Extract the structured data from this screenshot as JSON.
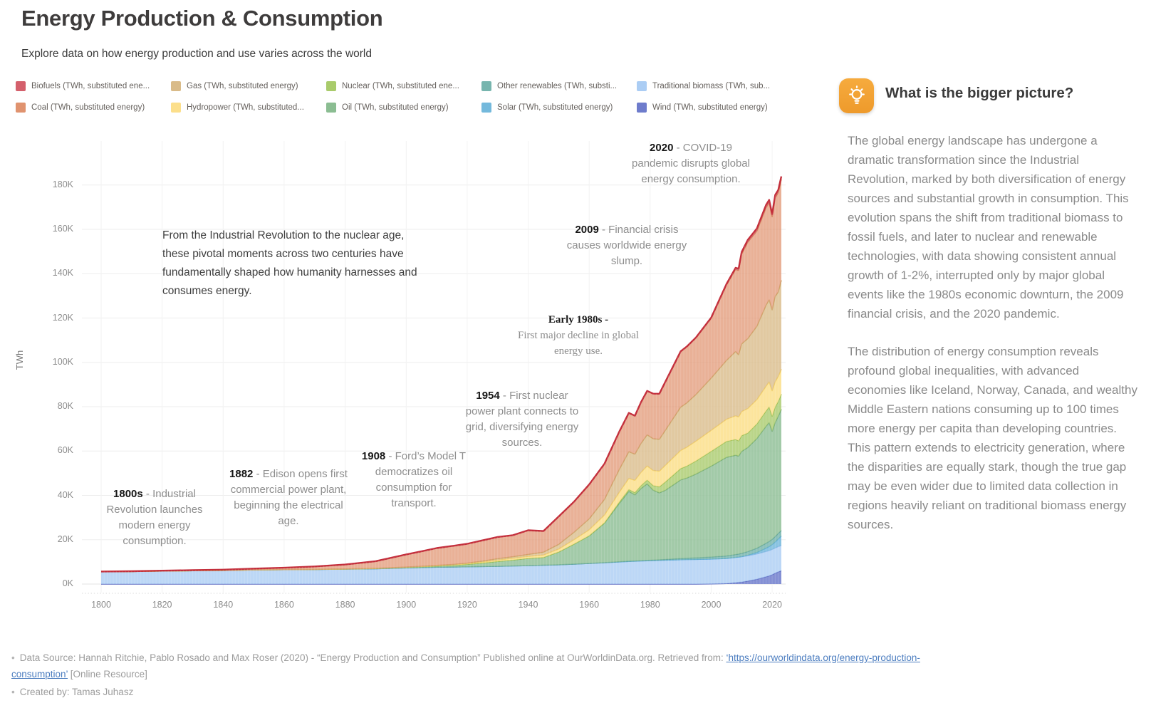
{
  "header": {
    "title": "Energy Production & Consumption",
    "subtitle": "Explore data on how energy production and use varies across the world"
  },
  "legend": {
    "items": [
      {
        "key": "biofuels",
        "label": "Biofuels (TWh, substituted ene...",
        "color": "#d4606c"
      },
      {
        "key": "coal",
        "label": "Coal (TWh, substituted energy)",
        "color": "#e0936f"
      },
      {
        "key": "gas",
        "label": "Gas (TWh, substituted energy)",
        "color": "#d9bb89"
      },
      {
        "key": "hydropower",
        "label": "Hydropower (TWh, substituted...",
        "color": "#fcdf8b"
      },
      {
        "key": "nuclear",
        "label": "Nuclear (TWh, substituted ene...",
        "color": "#a9cb6b"
      },
      {
        "key": "oil",
        "label": "Oil (TWh, substituted energy)",
        "color": "#8bbd92"
      },
      {
        "key": "other-renewables",
        "label": "Other renewables (TWh, substi...",
        "color": "#77b5ae"
      },
      {
        "key": "solar",
        "label": "Solar (TWh, substituted energy)",
        "color": "#74b9dc"
      },
      {
        "key": "traditional-biomass",
        "label": "Traditional biomass (TWh, sub...",
        "color": "#abcdf4"
      },
      {
        "key": "wind",
        "label": "Wind (TWh, substituted energy)",
        "color": "#6e7ccc"
      }
    ]
  },
  "chart_data": {
    "type": "area",
    "stacked": true,
    "title": "",
    "xlabel": "",
    "ylabel": "TWh",
    "xlim": [
      1800,
      2023
    ],
    "ylim": [
      0,
      200000
    ],
    "grid": true,
    "legend_position": "top",
    "xticks": [
      1800,
      1820,
      1840,
      1860,
      1880,
      1900,
      1920,
      1940,
      1960,
      1980,
      2000,
      2020
    ],
    "yticks": [
      "0K",
      "20K",
      "40K",
      "60K",
      "80K",
      "100K",
      "120K",
      "140K",
      "160K",
      "180K"
    ],
    "ytick_values": [
      0,
      20000,
      40000,
      60000,
      80000,
      100000,
      120000,
      140000,
      160000,
      180000
    ],
    "x": [
      1800,
      1810,
      1820,
      1830,
      1840,
      1850,
      1860,
      1870,
      1880,
      1890,
      1900,
      1905,
      1910,
      1915,
      1920,
      1925,
      1930,
      1935,
      1940,
      1945,
      1950,
      1955,
      1960,
      1965,
      1970,
      1973,
      1975,
      1977,
      1979,
      1981,
      1983,
      1985,
      1990,
      1992,
      1995,
      2000,
      2005,
      2008,
      2009,
      2010,
      2012,
      2015,
      2018,
      2019,
      2020,
      2021,
      2022,
      2023
    ],
    "stack_order_bottom_to_top": [
      "Wind",
      "Traditional biomass",
      "Solar",
      "Other renewables",
      "Oil",
      "Nuclear",
      "Hydropower",
      "Gas",
      "Coal",
      "Biofuels"
    ],
    "series": [
      {
        "name": "Wind",
        "color": "#6e7ccc",
        "stroke": "#5a68c0",
        "fill_opacity": 0.85,
        "line_width": 1.4,
        "values": [
          0,
          0,
          0,
          0,
          0,
          0,
          0,
          0,
          0,
          0,
          0,
          0,
          0,
          0,
          0,
          0,
          0,
          0,
          0,
          0,
          0,
          0,
          0,
          0,
          0,
          0,
          0,
          0,
          0,
          0,
          0,
          0,
          4,
          5,
          8,
          70,
          240,
          620,
          760,
          900,
          1350,
          2200,
          3300,
          3700,
          4200,
          4900,
          5500,
          6000
        ]
      },
      {
        "name": "Traditional biomass",
        "color": "#abcdf4",
        "stroke": "#92bbea",
        "fill_opacity": 0.8,
        "line_width": 1.4,
        "values": [
          5556,
          5650,
          5879,
          6000,
          6150,
          6390,
          6500,
          6600,
          6700,
          6900,
          7300,
          7450,
          7600,
          7700,
          7800,
          7900,
          8000,
          8150,
          8300,
          8500,
          8700,
          9000,
          9300,
          9600,
          10000,
          10200,
          10300,
          10400,
          10500,
          10600,
          10700,
          10800,
          11000,
          11050,
          11100,
          11200,
          11300,
          11350,
          11350,
          11400,
          11400,
          11400,
          11400,
          11400,
          11400,
          11400,
          11400,
          11400
        ]
      },
      {
        "name": "Solar",
        "color": "#74b9dc",
        "stroke": "#5cacd4",
        "fill_opacity": 0.85,
        "line_width": 1.4,
        "values": [
          0,
          0,
          0,
          0,
          0,
          0,
          0,
          0,
          0,
          0,
          0,
          0,
          0,
          0,
          0,
          0,
          0,
          0,
          0,
          0,
          0,
          0,
          0,
          0,
          0,
          0,
          0,
          0,
          0,
          0,
          0,
          0,
          0,
          0,
          0,
          3,
          12,
          35,
          55,
          90,
          260,
          660,
          1500,
          1800,
          2200,
          2700,
          3450,
          4300
        ]
      },
      {
        "name": "Other renewables",
        "color": "#77b5ae",
        "stroke": "#60a59d",
        "fill_opacity": 0.85,
        "line_width": 1.4,
        "values": [
          0,
          0,
          0,
          0,
          0,
          0,
          0,
          0,
          0,
          0,
          0,
          0,
          0,
          0,
          0,
          0,
          0,
          0,
          0,
          0,
          0,
          0,
          30,
          60,
          100,
          130,
          150,
          170,
          200,
          230,
          270,
          320,
          500,
          560,
          700,
          900,
          1100,
          1300,
          1350,
          1450,
          1600,
          1900,
          2200,
          2300,
          2350,
          2400,
          2450,
          2500
        ]
      },
      {
        "name": "Oil",
        "color": "#8bbd92",
        "stroke": "#72ab7a",
        "fill_opacity": 0.8,
        "line_width": 1.5,
        "values": [
          0,
          0,
          0,
          0,
          0,
          0,
          10,
          20,
          80,
          150,
          260,
          400,
          560,
          750,
          1100,
          1600,
          2200,
          2700,
          3300,
          3500,
          5800,
          9000,
          12400,
          17800,
          26500,
          31500,
          29800,
          32500,
          34500,
          31500,
          30200,
          31200,
          35500,
          36200,
          37800,
          41000,
          44500,
          44800,
          44200,
          46000,
          47000,
          49500,
          52800,
          53600,
          48700,
          51500,
          52900,
          54600
        ]
      },
      {
        "name": "Nuclear",
        "color": "#a9cb6b",
        "stroke": "#95bd52",
        "fill_opacity": 0.8,
        "line_width": 1.5,
        "values": [
          0,
          0,
          0,
          0,
          0,
          0,
          0,
          0,
          0,
          0,
          0,
          0,
          0,
          0,
          0,
          0,
          0,
          0,
          0,
          0,
          0,
          10,
          70,
          180,
          600,
          850,
          1050,
          1350,
          1700,
          2100,
          2700,
          3800,
          5100,
          5400,
          5900,
          6700,
          7200,
          7100,
          6900,
          7100,
          6500,
          6600,
          6900,
          7100,
          6800,
          7000,
          6700,
          6820
        ]
      },
      {
        "name": "Hydropower",
        "color": "#fcdf8b",
        "stroke": "#f4cf62",
        "fill_opacity": 0.85,
        "line_width": 1.5,
        "values": [
          0,
          0,
          0,
          0,
          0,
          0,
          0,
          0,
          10,
          20,
          44,
          90,
          130,
          220,
          320,
          480,
          650,
          780,
          900,
          1100,
          1300,
          2000,
          2700,
          3500,
          4500,
          5000,
          5500,
          6000,
          6400,
          6800,
          7100,
          7500,
          8200,
          8500,
          9000,
          9500,
          10000,
          10700,
          10800,
          10900,
          11100,
          11000,
          11200,
          11300,
          11500,
          11400,
          11300,
          11300
        ]
      },
      {
        "name": "Gas",
        "color": "#d9bb89",
        "stroke": "#caa869",
        "fill_opacity": 0.8,
        "line_width": 1.5,
        "values": [
          0,
          0,
          0,
          0,
          0,
          0,
          0,
          0,
          20,
          40,
          64,
          100,
          140,
          180,
          230,
          400,
          600,
          700,
          870,
          1300,
          2100,
          3300,
          4900,
          7000,
          10300,
          12000,
          11800,
          13000,
          14000,
          14300,
          14300,
          15800,
          19500,
          20000,
          21000,
          23500,
          26500,
          29000,
          28000,
          30500,
          31500,
          33000,
          36500,
          37000,
          36500,
          38500,
          38000,
          40100
        ]
      },
      {
        "name": "Coal",
        "color": "#e0936f",
        "stroke": "#d57f55",
        "fill_opacity": 0.72,
        "line_width": 1.5,
        "values": [
          97,
          128,
          153,
          264,
          356,
          569,
          850,
          1300,
          2000,
          3200,
          5700,
          6700,
          7800,
          8300,
          8700,
          9300,
          9800,
          9700,
          10900,
          9500,
          12600,
          13800,
          15500,
          16100,
          17100,
          17500,
          17300,
          18600,
          19800,
          20300,
          20500,
          21800,
          25000,
          25200,
          25500,
          27000,
          34000,
          37000,
          38000,
          40500,
          43500,
          43000,
          44000,
          43800,
          42000,
          44500,
          44800,
          45565
        ]
      },
      {
        "name": "Biofuels",
        "color": "#d4606c",
        "stroke": "#c32e3b",
        "fill_opacity": 0.8,
        "line_width": 2.4,
        "values": [
          0,
          0,
          0,
          0,
          0,
          0,
          0,
          0,
          0,
          0,
          0,
          0,
          0,
          0,
          0,
          0,
          0,
          0,
          0,
          0,
          0,
          0,
          0,
          0,
          0,
          10,
          20,
          30,
          40,
          50,
          80,
          120,
          180,
          200,
          230,
          290,
          450,
          750,
          850,
          950,
          1050,
          1150,
          1250,
          1300,
          1200,
          1250,
          1300,
          1320
        ]
      }
    ]
  },
  "annotations": {
    "intro": "From the Industrial Revolution to the nuclear age, these pivotal moments across two centuries have fundamentally shaped how humanity harnesses and consumes energy.",
    "events": [
      {
        "year": "1800s",
        "text": "- Industrial Revolution launches modern energy consumption."
      },
      {
        "year": "1882",
        "text": "- Edison opens first commercial power plant, beginning the electrical age."
      },
      {
        "year": "1908",
        "text": "- Ford’s Model T democratizes oil consumption for transport."
      },
      {
        "year": "1954",
        "text": "- First nuclear power plant connects to grid, diversifying energy sources."
      },
      {
        "year": "Early 1980s -",
        "text": "First major decline in global energy use."
      },
      {
        "year": "2009",
        "text": "- Financial crisis causes worldwide energy slump."
      },
      {
        "year": "2020",
        "text": "- COVID-19 pandemic disrupts global energy consumption."
      }
    ]
  },
  "side_panel": {
    "icon": "lightbulb-icon",
    "heading": "What is the bigger picture?",
    "paragraphs": [
      "The global energy landscape has undergone a dramatic transformation since the Industrial Revolution, marked by both diversification of energy sources and substantial growth in consumption. This evolution spans the shift from traditional biomass to fossil fuels, and later to nuclear and renewable technologies, with data showing consistent annual growth of 1-2%, interrupted only by major global events like the 1980s economic downturn, the 2009 financial crisis, and the 2020 pandemic.",
      "The distribution of energy consumption reveals profound global inequalities, with advanced economies like Iceland, Norway, Canada, and wealthy Middle Eastern nations consuming up to 100 times more energy per capita than developing countries. This pattern extends to electricity generation, where the disparities are equally stark, though the true gap may be even wider due to limited data collection in regions heavily reliant on traditional biomass energy sources."
    ]
  },
  "footer": {
    "bullet": "•",
    "line1_prefix": "Data Source: Hannah Ritchie, Pablo Rosado and Max Roser (2020) - “Energy Production and Consumption” Published online at OurWorldinData.org. Retrieved from: ",
    "link": "‘https://ourworldindata.org/energy-production-consumption’",
    "line1_suffix": " [Online Resource]",
    "line2": "Created by: Tamas Juhasz"
  }
}
